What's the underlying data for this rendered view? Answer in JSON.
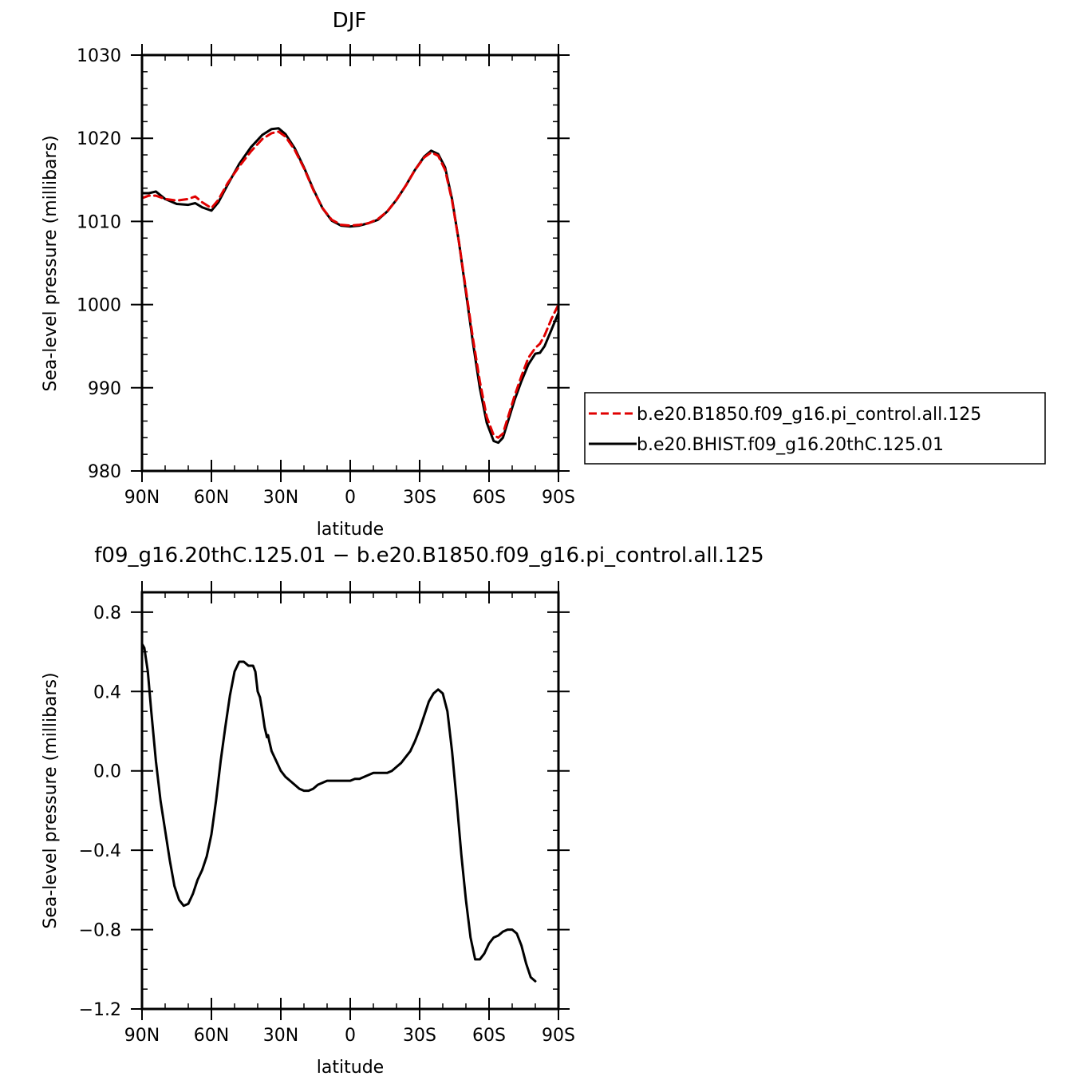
{
  "chart_data": [
    {
      "type": "line",
      "title": "DJF",
      "xlabel": "latitude",
      "ylabel": "Sea-level pressure (millibars)",
      "xlim": [
        90,
        -90
      ],
      "ylim": [
        980,
        1030
      ],
      "x_ticks": [
        {
          "value": 90,
          "label": "90N"
        },
        {
          "value": 60,
          "label": "60N"
        },
        {
          "value": 30,
          "label": "30N"
        },
        {
          "value": 0,
          "label": "0"
        },
        {
          "value": -30,
          "label": "30S"
        },
        {
          "value": -60,
          "label": "60S"
        },
        {
          "value": -90,
          "label": "90S"
        }
      ],
      "y_ticks": [
        {
          "value": 980,
          "label": "980"
        },
        {
          "value": 990,
          "label": "990"
        },
        {
          "value": 1000,
          "label": "1000"
        },
        {
          "value": 1010,
          "label": "1010"
        },
        {
          "value": 1020,
          "label": "1020"
        },
        {
          "value": 1030,
          "label": "1030"
        }
      ],
      "legend_position": "right",
      "series": [
        {
          "name": "b.e20.B1850.f09_g16.pi_control.all.125",
          "color": "#e00000",
          "dash": "dashed",
          "points": [
            [
              90,
              1012.8
            ],
            [
              87,
              1013.1
            ],
            [
              84,
              1013.1
            ],
            [
              80,
              1012.7
            ],
            [
              75,
              1012.5
            ],
            [
              70,
              1012.7
            ],
            [
              67,
              1013.0
            ],
            [
              64,
              1012.3
            ],
            [
              60,
              1011.6
            ],
            [
              57,
              1012.6
            ],
            [
              53,
              1014.6
            ],
            [
              48,
              1016.6
            ],
            [
              43,
              1018.4
            ],
            [
              38,
              1019.9
            ],
            [
              34,
              1020.6
            ],
            [
              31,
              1020.8
            ],
            [
              28,
              1020.2
            ],
            [
              24,
              1018.6
            ],
            [
              20,
              1016.4
            ],
            [
              16,
              1013.8
            ],
            [
              12,
              1011.6
            ],
            [
              8,
              1010.2
            ],
            [
              4,
              1009.6
            ],
            [
              0,
              1009.5
            ],
            [
              -4,
              1009.6
            ],
            [
              -8,
              1009.8
            ],
            [
              -12,
              1010.3
            ],
            [
              -16,
              1011.2
            ],
            [
              -20,
              1012.6
            ],
            [
              -24,
              1014.3
            ],
            [
              -28,
              1016.2
            ],
            [
              -32,
              1017.7
            ],
            [
              -35,
              1018.3
            ],
            [
              -38,
              1017.9
            ],
            [
              -41,
              1016.2
            ],
            [
              -44,
              1012.5
            ],
            [
              -47,
              1007.5
            ],
            [
              -50,
              1001.8
            ],
            [
              -53,
              996.0
            ],
            [
              -56,
              990.8
            ],
            [
              -59,
              986.5
            ],
            [
              -62,
              984.3
            ],
            [
              -64,
              984.0
            ],
            [
              -66,
              984.5
            ],
            [
              -68,
              986.3
            ],
            [
              -71,
              989.0
            ],
            [
              -74,
              991.4
            ],
            [
              -77,
              993.6
            ],
            [
              -80,
              994.8
            ],
            [
              -82,
              995.3
            ],
            [
              -84,
              996.3
            ],
            [
              -87,
              998.3
            ],
            [
              -90,
              1000.0
            ]
          ]
        },
        {
          "name": "b.e20.BHIST.f09_g16.20thC.125.01",
          "color": "#000000",
          "dash": "solid",
          "points": [
            [
              90,
              1013.4
            ],
            [
              87,
              1013.4
            ],
            [
              84,
              1013.6
            ],
            [
              80,
              1012.7
            ],
            [
              75,
              1012.1
            ],
            [
              70,
              1012.0
            ],
            [
              67,
              1012.2
            ],
            [
              64,
              1011.7
            ],
            [
              60,
              1011.3
            ],
            [
              57,
              1012.3
            ],
            [
              53,
              1014.4
            ],
            [
              48,
              1016.9
            ],
            [
              43,
              1018.9
            ],
            [
              38,
              1020.4
            ],
            [
              34,
              1021.1
            ],
            [
              31,
              1021.2
            ],
            [
              28,
              1020.5
            ],
            [
              24,
              1018.8
            ],
            [
              20,
              1016.5
            ],
            [
              16,
              1013.9
            ],
            [
              12,
              1011.6
            ],
            [
              8,
              1010.1
            ],
            [
              4,
              1009.5
            ],
            [
              0,
              1009.4
            ],
            [
              -4,
              1009.5
            ],
            [
              -8,
              1009.8
            ],
            [
              -12,
              1010.2
            ],
            [
              -16,
              1011.2
            ],
            [
              -20,
              1012.6
            ],
            [
              -24,
              1014.3
            ],
            [
              -28,
              1016.2
            ],
            [
              -32,
              1017.8
            ],
            [
              -35,
              1018.5
            ],
            [
              -38,
              1018.1
            ],
            [
              -41,
              1016.5
            ],
            [
              -44,
              1012.7
            ],
            [
              -47,
              1007.5
            ],
            [
              -50,
              1001.5
            ],
            [
              -53,
              995.5
            ],
            [
              -56,
              990.0
            ],
            [
              -59,
              985.8
            ],
            [
              -62,
              983.6
            ],
            [
              -64,
              983.4
            ],
            [
              -66,
              984.0
            ],
            [
              -68,
              985.8
            ],
            [
              -71,
              988.5
            ],
            [
              -74,
              990.8
            ],
            [
              -77,
              992.8
            ],
            [
              -80,
              994.1
            ],
            [
              -82,
              994.2
            ],
            [
              -84,
              995.0
            ],
            [
              -87,
              997.0
            ],
            [
              -90,
              999.0
            ]
          ]
        }
      ]
    },
    {
      "type": "line",
      "title": "f09_g16.20thC.125.01 − b.e20.B1850.f09_g16.pi_control.all.125",
      "xlabel": "latitude",
      "ylabel": "Sea-level pressure (millibars)",
      "xlim": [
        90,
        -90
      ],
      "ylim": [
        -1.2,
        0.9
      ],
      "x_ticks": [
        {
          "value": 90,
          "label": "90N"
        },
        {
          "value": 60,
          "label": "60N"
        },
        {
          "value": 30,
          "label": "30N"
        },
        {
          "value": 0,
          "label": "0"
        },
        {
          "value": -30,
          "label": "30S"
        },
        {
          "value": -60,
          "label": "60S"
        },
        {
          "value": -90,
          "label": "90S"
        }
      ],
      "y_ticks": [
        {
          "value": -1.2,
          "label": "−1.2"
        },
        {
          "value": -0.8,
          "label": "−0.8"
        },
        {
          "value": -0.4,
          "label": "−0.4"
        },
        {
          "value": 0.0,
          "label": "0.0"
        },
        {
          "value": 0.4,
          "label": "0.4"
        },
        {
          "value": 0.8,
          "label": "0.8"
        }
      ],
      "series": [
        {
          "color": "#000000",
          "dash": "solid",
          "points": [
            [
              90,
              0.64
            ],
            [
              89,
              0.62
            ],
            [
              87.5,
              0.5
            ],
            [
              86,
              0.3
            ],
            [
              84,
              0.05
            ],
            [
              82,
              -0.15
            ],
            [
              80,
              -0.3
            ],
            [
              78,
              -0.45
            ],
            [
              76,
              -0.58
            ],
            [
              74,
              -0.65
            ],
            [
              72,
              -0.68
            ],
            [
              70,
              -0.67
            ],
            [
              68,
              -0.62
            ],
            [
              66,
              -0.55
            ],
            [
              64,
              -0.5
            ],
            [
              62,
              -0.43
            ],
            [
              60,
              -0.32
            ],
            [
              58,
              -0.15
            ],
            [
              56,
              0.05
            ],
            [
              54,
              0.22
            ],
            [
              52,
              0.38
            ],
            [
              50,
              0.5
            ],
            [
              48,
              0.55
            ],
            [
              46,
              0.55
            ],
            [
              44,
              0.53
            ],
            [
              42,
              0.53
            ],
            [
              41,
              0.5
            ],
            [
              40,
              0.4
            ],
            [
              39,
              0.37
            ],
            [
              38,
              0.3
            ],
            [
              37,
              0.22
            ],
            [
              36,
              0.17
            ],
            [
              35.5,
              0.18
            ],
            [
              35,
              0.15
            ],
            [
              34,
              0.1
            ],
            [
              32,
              0.05
            ],
            [
              30,
              0.0
            ],
            [
              28,
              -0.03
            ],
            [
              26,
              -0.05
            ],
            [
              24,
              -0.07
            ],
            [
              22,
              -0.09
            ],
            [
              20,
              -0.1
            ],
            [
              18,
              -0.1
            ],
            [
              16,
              -0.09
            ],
            [
              14,
              -0.07
            ],
            [
              12,
              -0.06
            ],
            [
              10,
              -0.05
            ],
            [
              8,
              -0.05
            ],
            [
              6,
              -0.05
            ],
            [
              4,
              -0.05
            ],
            [
              2,
              -0.05
            ],
            [
              0,
              -0.05
            ],
            [
              -2,
              -0.04
            ],
            [
              -4,
              -0.04
            ],
            [
              -6,
              -0.03
            ],
            [
              -8,
              -0.02
            ],
            [
              -10,
              -0.01
            ],
            [
              -12,
              -0.01
            ],
            [
              -14,
              -0.01
            ],
            [
              -16,
              -0.01
            ],
            [
              -18,
              0.0
            ],
            [
              -20,
              0.02
            ],
            [
              -22,
              0.04
            ],
            [
              -24,
              0.07
            ],
            [
              -26,
              0.1
            ],
            [
              -28,
              0.15
            ],
            [
              -30,
              0.21
            ],
            [
              -32,
              0.28
            ],
            [
              -34,
              0.35
            ],
            [
              -36,
              0.39
            ],
            [
              -38,
              0.41
            ],
            [
              -40,
              0.39
            ],
            [
              -42,
              0.3
            ],
            [
              -44,
              0.1
            ],
            [
              -46,
              -0.15
            ],
            [
              -48,
              -0.42
            ],
            [
              -50,
              -0.65
            ],
            [
              -52,
              -0.84
            ],
            [
              -54,
              -0.95
            ],
            [
              -56,
              -0.95
            ],
            [
              -58,
              -0.92
            ],
            [
              -60,
              -0.87
            ],
            [
              -62,
              -0.84
            ],
            [
              -64,
              -0.83
            ],
            [
              -66,
              -0.81
            ],
            [
              -68,
              -0.8
            ],
            [
              -70,
              -0.8
            ],
            [
              -72,
              -0.82
            ],
            [
              -74,
              -0.88
            ],
            [
              -76,
              -0.97
            ],
            [
              -78,
              -1.04
            ],
            [
              -80,
              -1.06
            ]
          ]
        }
      ]
    }
  ]
}
